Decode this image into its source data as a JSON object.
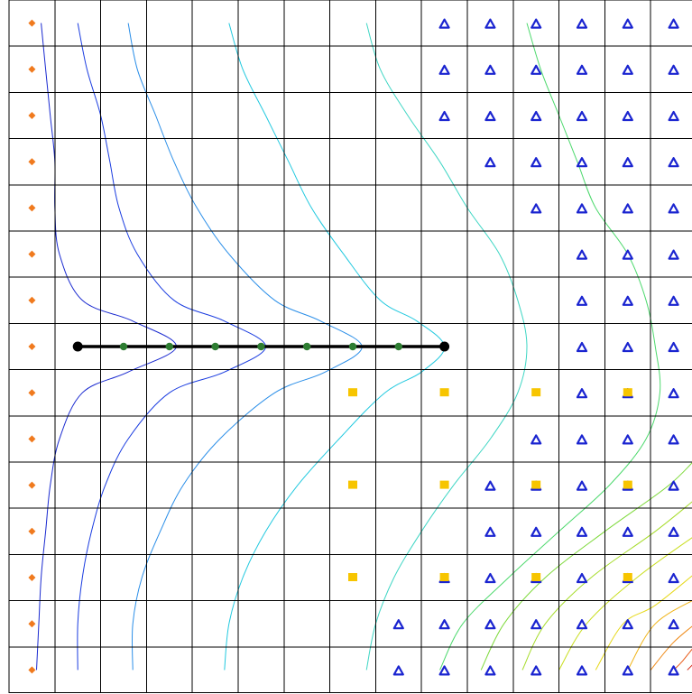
{
  "view": {
    "columns": 15,
    "rows": 15,
    "background": "#ffffff",
    "grid_color": "#000000"
  },
  "legend_colors": {
    "specified_head": "#f07a1e",
    "drain": "#1a24d0",
    "well": "#f7c500",
    "observation": "#2e7d32",
    "profile_line": "#000000"
  },
  "boundary": {
    "specified_head_cells": [
      [
        1,
        1
      ],
      [
        2,
        1
      ],
      [
        3,
        1
      ],
      [
        4,
        1
      ],
      [
        5,
        1
      ],
      [
        6,
        1
      ],
      [
        7,
        1
      ],
      [
        8,
        1
      ],
      [
        9,
        1
      ],
      [
        10,
        1
      ],
      [
        11,
        1
      ],
      [
        12,
        1
      ],
      [
        13,
        1
      ],
      [
        14,
        1
      ],
      [
        15,
        1
      ]
    ],
    "drain_cells": [
      [
        1,
        10
      ],
      [
        1,
        11
      ],
      [
        1,
        12
      ],
      [
        1,
        13
      ],
      [
        1,
        14
      ],
      [
        1,
        15
      ],
      [
        2,
        10
      ],
      [
        2,
        11
      ],
      [
        2,
        12
      ],
      [
        2,
        13
      ],
      [
        2,
        14
      ],
      [
        2,
        15
      ],
      [
        3,
        10
      ],
      [
        3,
        11
      ],
      [
        3,
        12
      ],
      [
        3,
        13
      ],
      [
        3,
        14
      ],
      [
        3,
        15
      ],
      [
        4,
        11
      ],
      [
        4,
        12
      ],
      [
        4,
        13
      ],
      [
        4,
        14
      ],
      [
        4,
        15
      ],
      [
        5,
        12
      ],
      [
        5,
        13
      ],
      [
        5,
        14
      ],
      [
        5,
        15
      ],
      [
        6,
        13
      ],
      [
        6,
        14
      ],
      [
        6,
        15
      ],
      [
        7,
        13
      ],
      [
        7,
        14
      ],
      [
        7,
        15
      ],
      [
        8,
        13
      ],
      [
        8,
        14
      ],
      [
        8,
        15
      ],
      [
        9,
        13
      ],
      [
        9,
        14
      ],
      [
        9,
        15
      ],
      [
        10,
        12
      ],
      [
        10,
        13
      ],
      [
        10,
        14
      ],
      [
        10,
        15
      ],
      [
        11,
        11
      ],
      [
        11,
        12
      ],
      [
        11,
        13
      ],
      [
        11,
        14
      ],
      [
        11,
        15
      ],
      [
        12,
        11
      ],
      [
        12,
        12
      ],
      [
        12,
        13
      ],
      [
        12,
        14
      ],
      [
        12,
        15
      ],
      [
        13,
        10
      ],
      [
        13,
        11
      ],
      [
        13,
        12
      ],
      [
        13,
        13
      ],
      [
        13,
        14
      ],
      [
        13,
        15
      ],
      [
        14,
        9
      ],
      [
        14,
        10
      ],
      [
        14,
        11
      ],
      [
        14,
        12
      ],
      [
        14,
        13
      ],
      [
        14,
        14
      ],
      [
        14,
        15
      ],
      [
        15,
        9
      ],
      [
        15,
        10
      ],
      [
        15,
        11
      ],
      [
        15,
        12
      ],
      [
        15,
        13
      ],
      [
        15,
        14
      ],
      [
        15,
        15
      ]
    ],
    "well_cells": [
      [
        9,
        8
      ],
      [
        9,
        10
      ],
      [
        9,
        12
      ],
      [
        9,
        14
      ],
      [
        11,
        8
      ],
      [
        11,
        10
      ],
      [
        11,
        12
      ],
      [
        11,
        14
      ],
      [
        13,
        8
      ],
      [
        13,
        10
      ],
      [
        13,
        12
      ],
      [
        13,
        14
      ]
    ],
    "observation_cells": [
      [
        8,
        2
      ],
      [
        8,
        3
      ],
      [
        8,
        4
      ],
      [
        8,
        5
      ],
      [
        8,
        6
      ],
      [
        8,
        7
      ],
      [
        8,
        8
      ],
      [
        8,
        9
      ],
      [
        8,
        10
      ]
    ],
    "profile_line": {
      "row": 8,
      "from_col": 2,
      "to_col": 10
    }
  },
  "contours": [
    {
      "color": "#1a2ad0",
      "points": [
        [
          1,
          1.2
        ],
        [
          2,
          1.3
        ],
        [
          3,
          1.4
        ],
        [
          4,
          1.5
        ],
        [
          5,
          1.5
        ],
        [
          6,
          1.6
        ],
        [
          7,
          2.1
        ],
        [
          7.45,
          3.2
        ],
        [
          8,
          4.15
        ],
        [
          8.55,
          3.1
        ],
        [
          9,
          2.1
        ],
        [
          10,
          1.6
        ],
        [
          11,
          1.4
        ],
        [
          12,
          1.3
        ],
        [
          13,
          1.2
        ],
        [
          14,
          1.15
        ],
        [
          15,
          1.1
        ]
      ]
    },
    {
      "color": "#1a3ce0",
      "points": [
        [
          1,
          2.0
        ],
        [
          2,
          2.2
        ],
        [
          3,
          2.5
        ],
        [
          4,
          2.7
        ],
        [
          5,
          2.9
        ],
        [
          6,
          3.3
        ],
        [
          7,
          4.1
        ],
        [
          7.45,
          5.2
        ],
        [
          8,
          6.1
        ],
        [
          8.55,
          5.2
        ],
        [
          9,
          4.0
        ],
        [
          10,
          3.1
        ],
        [
          11,
          2.6
        ],
        [
          12,
          2.3
        ],
        [
          13,
          2.1
        ],
        [
          14,
          2.0
        ],
        [
          15,
          2.0
        ]
      ]
    },
    {
      "color": "#2a8ee8",
      "points": [
        [
          1,
          3.1
        ],
        [
          2,
          3.3
        ],
        [
          3,
          3.7
        ],
        [
          4,
          4.1
        ],
        [
          5,
          4.6
        ],
        [
          6,
          5.3
        ],
        [
          7,
          6.3
        ],
        [
          7.45,
          7.3
        ],
        [
          8,
          8.2
        ],
        [
          8.55,
          7.4
        ],
        [
          9,
          6.3
        ],
        [
          10,
          5.1
        ],
        [
          11,
          4.3
        ],
        [
          12,
          3.8
        ],
        [
          13,
          3.4
        ],
        [
          14,
          3.2
        ],
        [
          15,
          3.2
        ]
      ]
    },
    {
      "color": "#22c9df",
      "points": [
        [
          1,
          5.3
        ],
        [
          2,
          5.6
        ],
        [
          3,
          6.1
        ],
        [
          4,
          6.6
        ],
        [
          5,
          7.1
        ],
        [
          6,
          7.8
        ],
        [
          7,
          8.6
        ],
        [
          7.45,
          9.4
        ],
        [
          8,
          10.0
        ],
        [
          8.55,
          9.5
        ],
        [
          9,
          8.7
        ],
        [
          10,
          7.7
        ],
        [
          11,
          6.8
        ],
        [
          12,
          6.1
        ],
        [
          13,
          5.6
        ],
        [
          14,
          5.3
        ],
        [
          15,
          5.2
        ]
      ]
    },
    {
      "color": "#3fd6c4",
      "points": [
        [
          1,
          8.3
        ],
        [
          2,
          8.6
        ],
        [
          3,
          9.2
        ],
        [
          4,
          9.9
        ],
        [
          5,
          10.5
        ],
        [
          6,
          11.2
        ],
        [
          7,
          11.6
        ],
        [
          8,
          11.8
        ],
        [
          9,
          11.6
        ],
        [
          10,
          11.0
        ],
        [
          11,
          10.2
        ],
        [
          12,
          9.5
        ],
        [
          13,
          8.9
        ],
        [
          14,
          8.5
        ],
        [
          15,
          8.3
        ]
      ]
    },
    {
      "color": "#4ed96e",
      "points": [
        [
          1,
          11.8
        ],
        [
          2,
          12.1
        ],
        [
          3,
          12.5
        ],
        [
          4,
          12.9
        ],
        [
          5,
          13.3
        ],
        [
          6,
          14.0
        ],
        [
          7,
          14.4
        ],
        [
          8,
          14.6
        ],
        [
          9,
          14.7
        ],
        [
          10,
          14.4
        ],
        [
          11,
          13.6
        ],
        [
          12,
          12.5
        ],
        [
          13,
          11.4
        ],
        [
          14,
          10.4
        ],
        [
          15,
          9.9
        ]
      ]
    },
    {
      "color": "#7dd93a",
      "points": [
        [
          10.3,
          15.6
        ],
        [
          11,
          14.9
        ],
        [
          12,
          13.5
        ],
        [
          13,
          12.2
        ],
        [
          14,
          11.3
        ],
        [
          15,
          10.8
        ]
      ]
    },
    {
      "color": "#a6dc2a",
      "points": [
        [
          11.2,
          15.6
        ],
        [
          12,
          14.6
        ],
        [
          13,
          13.2
        ],
        [
          14,
          12.2
        ],
        [
          15,
          11.7
        ]
      ]
    },
    {
      "color": "#c9de1f",
      "points": [
        [
          12.0,
          15.6
        ],
        [
          13,
          14.2
        ],
        [
          14,
          13.1
        ],
        [
          15,
          12.5
        ]
      ]
    },
    {
      "color": "#e6d81a",
      "points": [
        [
          12.8,
          15.6
        ],
        [
          13.6,
          14.6
        ],
        [
          14,
          13.9
        ],
        [
          15,
          13.3
        ]
      ]
    },
    {
      "color": "#f0b418",
      "points": [
        [
          13.4,
          15.6
        ],
        [
          14,
          14.6
        ],
        [
          15,
          14.0
        ]
      ]
    },
    {
      "color": "#ee8a18",
      "points": [
        [
          13.9,
          15.6
        ],
        [
          14.4,
          15.0
        ],
        [
          15,
          14.5
        ]
      ]
    },
    {
      "color": "#e85a18",
      "points": [
        [
          14.3,
          15.6
        ],
        [
          14.8,
          15.2
        ],
        [
          15,
          15.0
        ]
      ]
    },
    {
      "color": "#d82a18",
      "points": [
        [
          14.7,
          15.6
        ],
        [
          15,
          15.3
        ]
      ]
    }
  ]
}
